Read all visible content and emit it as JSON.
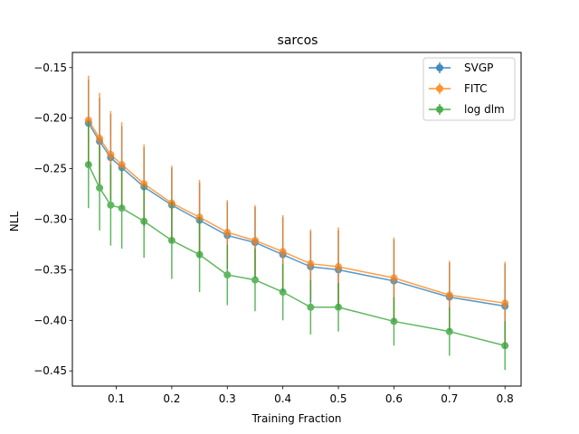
{
  "chart_data": {
    "type": "line",
    "title": "sarcos",
    "xlabel": "Training Fraction",
    "ylabel": "NLL",
    "xlim": [
      0.021,
      0.829
    ],
    "ylim": [
      -0.465,
      -0.135
    ],
    "xticks": [
      "0.1",
      "0.2",
      "0.3",
      "0.4",
      "0.5",
      "0.6",
      "0.7",
      "0.8"
    ],
    "yticks": [
      "−0.15",
      "−0.20",
      "−0.25",
      "−0.30",
      "−0.35",
      "−0.40",
      "−0.45"
    ],
    "x": [
      0.05,
      0.07,
      0.09,
      0.11,
      0.15,
      0.2,
      0.25,
      0.3,
      0.35,
      0.4,
      0.45,
      0.5,
      0.6,
      0.7,
      0.8
    ],
    "grid": false,
    "legend_position": "top-right",
    "series": [
      {
        "name": "SVGP",
        "color": "#1f77b4",
        "values": [
          -0.205,
          -0.223,
          -0.239,
          -0.249,
          -0.268,
          -0.286,
          -0.301,
          -0.316,
          -0.323,
          -0.335,
          -0.347,
          -0.35,
          -0.361,
          -0.377,
          -0.386
        ],
        "errors": [
          0.043,
          0.043,
          0.043,
          0.041,
          0.039,
          0.037,
          0.037,
          0.033,
          0.035,
          0.037,
          0.035,
          0.039,
          0.041,
          0.034,
          0.042
        ]
      },
      {
        "name": "FITC",
        "color": "#ff7f0e",
        "values": [
          -0.202,
          -0.22,
          -0.236,
          -0.246,
          -0.265,
          -0.284,
          -0.298,
          -0.313,
          -0.321,
          -0.332,
          -0.344,
          -0.347,
          -0.358,
          -0.375,
          -0.383
        ],
        "errors": [
          0.044,
          0.045,
          0.043,
          0.042,
          0.039,
          0.037,
          0.037,
          0.032,
          0.035,
          0.036,
          0.034,
          0.039,
          0.04,
          0.034,
          0.041
        ]
      },
      {
        "name": "log dlm",
        "color": "#2ca02c",
        "values": [
          -0.246,
          -0.269,
          -0.286,
          -0.289,
          -0.302,
          -0.321,
          -0.335,
          -0.355,
          -0.36,
          -0.372,
          -0.387,
          -0.387,
          -0.401,
          -0.411,
          -0.425
        ],
        "errors": [
          0.043,
          0.042,
          0.04,
          0.04,
          0.036,
          0.038,
          0.037,
          0.03,
          0.031,
          0.028,
          0.027,
          0.024,
          0.024,
          0.024,
          0.024
        ]
      }
    ]
  }
}
